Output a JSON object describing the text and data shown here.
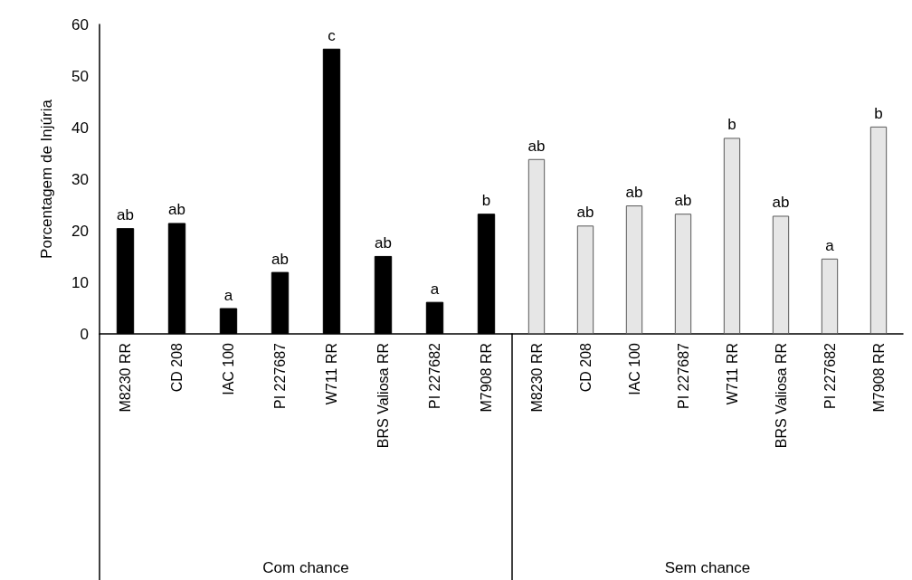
{
  "chart_data": [
    {
      "type": "bar",
      "ylabel": "Porcentagem de Injúria",
      "xlabel": "Com chance",
      "categories": [
        "M8230 RR",
        "CD 208",
        "IAC 100",
        "PI 227687",
        "W711 RR",
        "BRS Valiosa RR",
        "PI 227682",
        "M7908 RR"
      ],
      "values": [
        20.5,
        21.5,
        5.0,
        12.0,
        55.3,
        15.1,
        6.2,
        23.3
      ],
      "color": "#000000",
      "value_labels": [
        "ab",
        "ab",
        "a",
        "ab",
        "c",
        "ab",
        "a",
        "b"
      ],
      "ylim": [
        0,
        60
      ],
      "yticks": [
        0,
        10,
        20,
        30,
        40,
        50,
        60
      ]
    },
    {
      "type": "bar",
      "xlabel": "Sem chance",
      "categories": [
        "M8230 RR",
        "CD 208",
        "IAC 100",
        "PI 227687",
        "W711 RR",
        "BRS Valiosa RR",
        "PI 227682",
        "M7908 RR"
      ],
      "values": [
        33.9,
        21.0,
        24.9,
        23.3,
        38.0,
        22.9,
        14.6,
        40.2
      ],
      "color": "#e6e6e6",
      "value_labels": [
        "ab",
        "ab",
        "ab",
        "ab",
        "b",
        "ab",
        "a",
        "b"
      ],
      "ylim": [
        0,
        60
      ],
      "yticks": [
        0,
        10,
        20,
        30,
        40,
        50,
        60
      ],
      "tick_labels": "x"
    }
  ]
}
